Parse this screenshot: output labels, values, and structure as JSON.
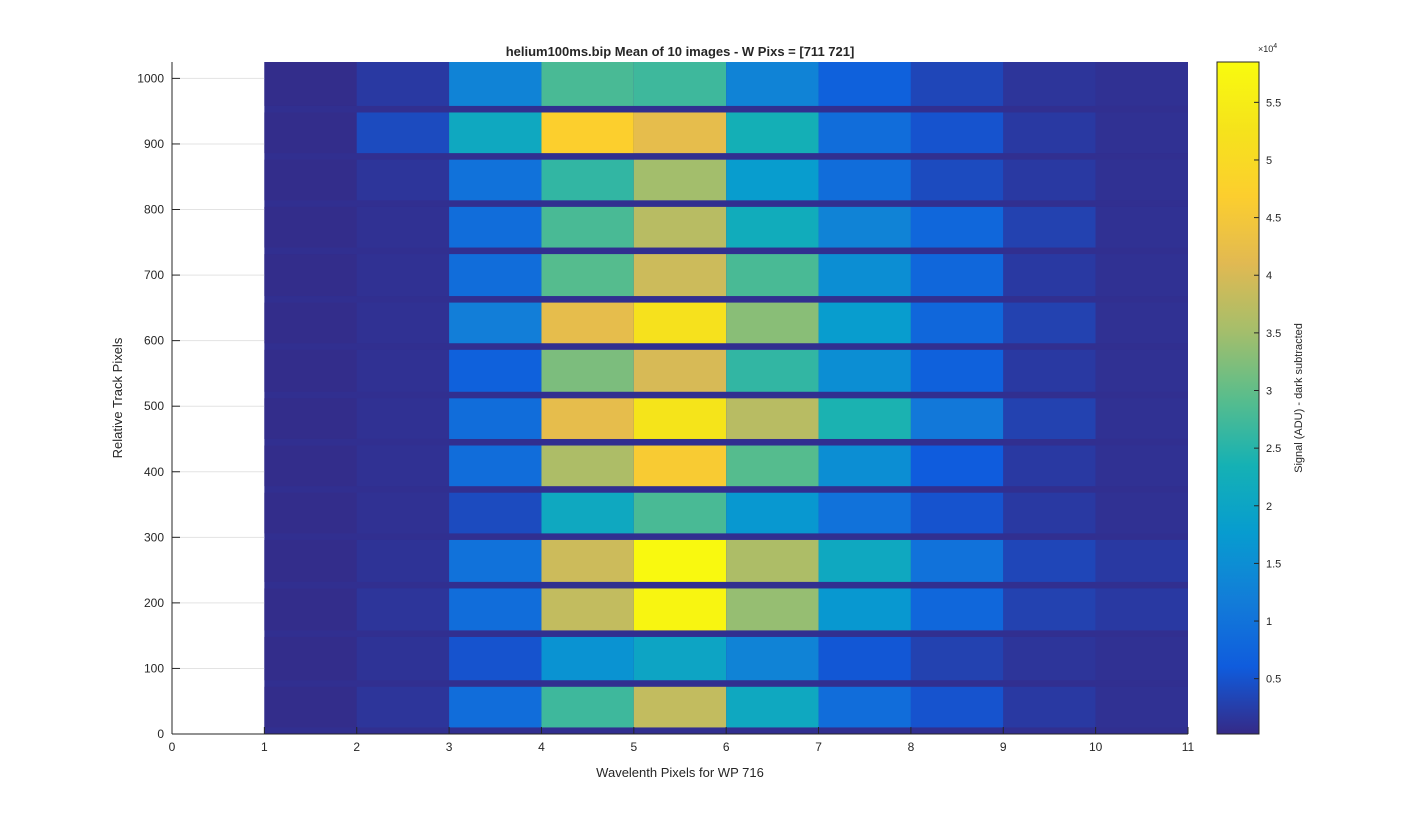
{
  "chart_data": {
    "type": "heatmap",
    "title": "helium100ms.bip  Mean of 10 images - W Pixs = [711  721]",
    "xlabel": "Wavelenth Pixels for WP 716",
    "ylabel": "Relative Track Pixels",
    "xlim": [
      0,
      11
    ],
    "ylim": [
      0,
      1025
    ],
    "xticks": [
      "0",
      "1",
      "2",
      "3",
      "4",
      "5",
      "6",
      "7",
      "8",
      "9",
      "10",
      "11"
    ],
    "yticks": [
      "0",
      "100",
      "200",
      "300",
      "400",
      "500",
      "600",
      "700",
      "800",
      "900",
      "1000"
    ],
    "grid": "horizontal",
    "colormap": "parula",
    "colorbar": {
      "label": "Signal (ADU) - dark subtracted",
      "exponent_label": "×10^4",
      "range": [
        0.02,
        5.85
      ],
      "ticks": [
        "0.5",
        "1",
        "1.5",
        "2",
        "2.5",
        "3",
        "3.5",
        "4",
        "4.5",
        "5",
        "5.5"
      ]
    },
    "columns": [
      {
        "x0": 1,
        "x1": 2
      },
      {
        "x0": 2,
        "x1": 3
      },
      {
        "x0": 3,
        "x1": 4
      },
      {
        "x0": 4,
        "x1": 5
      },
      {
        "x0": 5,
        "x1": 6
      },
      {
        "x0": 6,
        "x1": 7
      },
      {
        "x0": 7,
        "x1": 8
      },
      {
        "x0": 8,
        "x1": 9
      },
      {
        "x0": 9,
        "x1": 10
      },
      {
        "x0": 10,
        "x1": 11
      }
    ],
    "tracks": [
      {
        "y0": 10,
        "y1": 72,
        "values": [
          0.05,
          0.15,
          0.9,
          2.7,
          3.8,
          2.1,
          0.9,
          0.5,
          0.2,
          0.1
        ]
      },
      {
        "y0": 82,
        "y1": 148,
        "values": [
          0.05,
          0.12,
          0.5,
          1.6,
          2.0,
          1.3,
          0.55,
          0.3,
          0.15,
          0.1
        ]
      },
      {
        "y0": 158,
        "y1": 222,
        "values": [
          0.05,
          0.15,
          0.9,
          3.8,
          5.7,
          3.4,
          1.7,
          0.8,
          0.3,
          0.2
        ]
      },
      {
        "y0": 232,
        "y1": 296,
        "values": [
          0.05,
          0.12,
          1.0,
          3.9,
          5.8,
          3.6,
          2.1,
          1.0,
          0.35,
          0.2
        ]
      },
      {
        "y0": 306,
        "y1": 368,
        "values": [
          0.05,
          0.1,
          0.4,
          2.1,
          2.8,
          1.7,
          1.0,
          0.5,
          0.2,
          0.1
        ]
      },
      {
        "y0": 378,
        "y1": 440,
        "values": [
          0.05,
          0.1,
          0.9,
          3.6,
          4.6,
          2.9,
          1.5,
          0.6,
          0.2,
          0.1
        ]
      },
      {
        "y0": 450,
        "y1": 512,
        "values": [
          0.05,
          0.1,
          0.9,
          4.2,
          5.3,
          3.7,
          2.4,
          1.1,
          0.3,
          0.1
        ]
      },
      {
        "y0": 522,
        "y1": 586,
        "values": [
          0.05,
          0.1,
          0.7,
          3.2,
          4.0,
          2.6,
          1.5,
          0.7,
          0.2,
          0.1
        ]
      },
      {
        "y0": 596,
        "y1": 658,
        "values": [
          0.05,
          0.1,
          1.2,
          4.2,
          5.2,
          3.3,
          1.8,
          0.8,
          0.3,
          0.1
        ]
      },
      {
        "y0": 668,
        "y1": 732,
        "values": [
          0.05,
          0.1,
          0.9,
          2.9,
          3.9,
          2.8,
          1.5,
          0.8,
          0.2,
          0.1
        ]
      },
      {
        "y0": 742,
        "y1": 804,
        "values": [
          0.05,
          0.1,
          0.9,
          2.8,
          3.7,
          2.2,
          1.3,
          0.8,
          0.3,
          0.1
        ]
      },
      {
        "y0": 814,
        "y1": 876,
        "values": [
          0.05,
          0.15,
          1.0,
          2.6,
          3.5,
          1.8,
          0.9,
          0.4,
          0.2,
          0.1
        ]
      },
      {
        "y0": 886,
        "y1": 948,
        "values": [
          0.05,
          0.4,
          2.1,
          4.7,
          4.2,
          2.3,
          0.9,
          0.5,
          0.2,
          0.1
        ]
      },
      {
        "y0": 958,
        "y1": 1025,
        "values": [
          0.05,
          0.2,
          1.3,
          2.8,
          2.7,
          1.3,
          0.7,
          0.35,
          0.15,
          0.1
        ]
      }
    ]
  }
}
